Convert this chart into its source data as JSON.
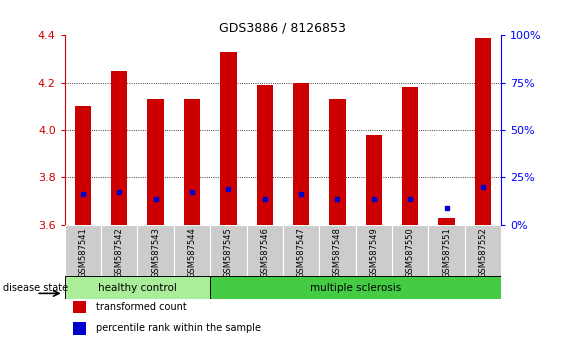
{
  "title": "GDS3886 / 8126853",
  "samples": [
    "GSM587541",
    "GSM587542",
    "GSM587543",
    "GSM587544",
    "GSM587545",
    "GSM587546",
    "GSM587547",
    "GSM587548",
    "GSM587549",
    "GSM587550",
    "GSM587551",
    "GSM587552"
  ],
  "red_values": [
    4.1,
    4.25,
    4.13,
    4.13,
    4.33,
    4.19,
    4.2,
    4.13,
    3.98,
    4.18,
    3.63,
    4.39
  ],
  "blue_values": [
    3.73,
    3.74,
    3.71,
    3.74,
    3.75,
    3.71,
    3.73,
    3.71,
    3.71,
    3.71,
    3.67,
    3.76
  ],
  "ymin": 3.6,
  "ymax": 4.4,
  "yticks_left": [
    3.6,
    3.8,
    4.0,
    4.2,
    4.4
  ],
  "yticks_right_labels": [
    "0%",
    "25%",
    "50%",
    "75%",
    "100%"
  ],
  "bar_color": "#cc0000",
  "dot_color": "#0000cc",
  "bg_color": "#ffffff",
  "healthy_color": "#aaee99",
  "ms_color": "#44cc44",
  "tick_label_bg": "#cccccc",
  "healthy_label": "healthy control",
  "ms_label": "multiple sclerosis",
  "disease_state_label": "disease state",
  "legend_red": "transformed count",
  "legend_blue": "percentile rank within the sample",
  "n_healthy": 4,
  "n_ms": 8,
  "bar_width": 0.45
}
